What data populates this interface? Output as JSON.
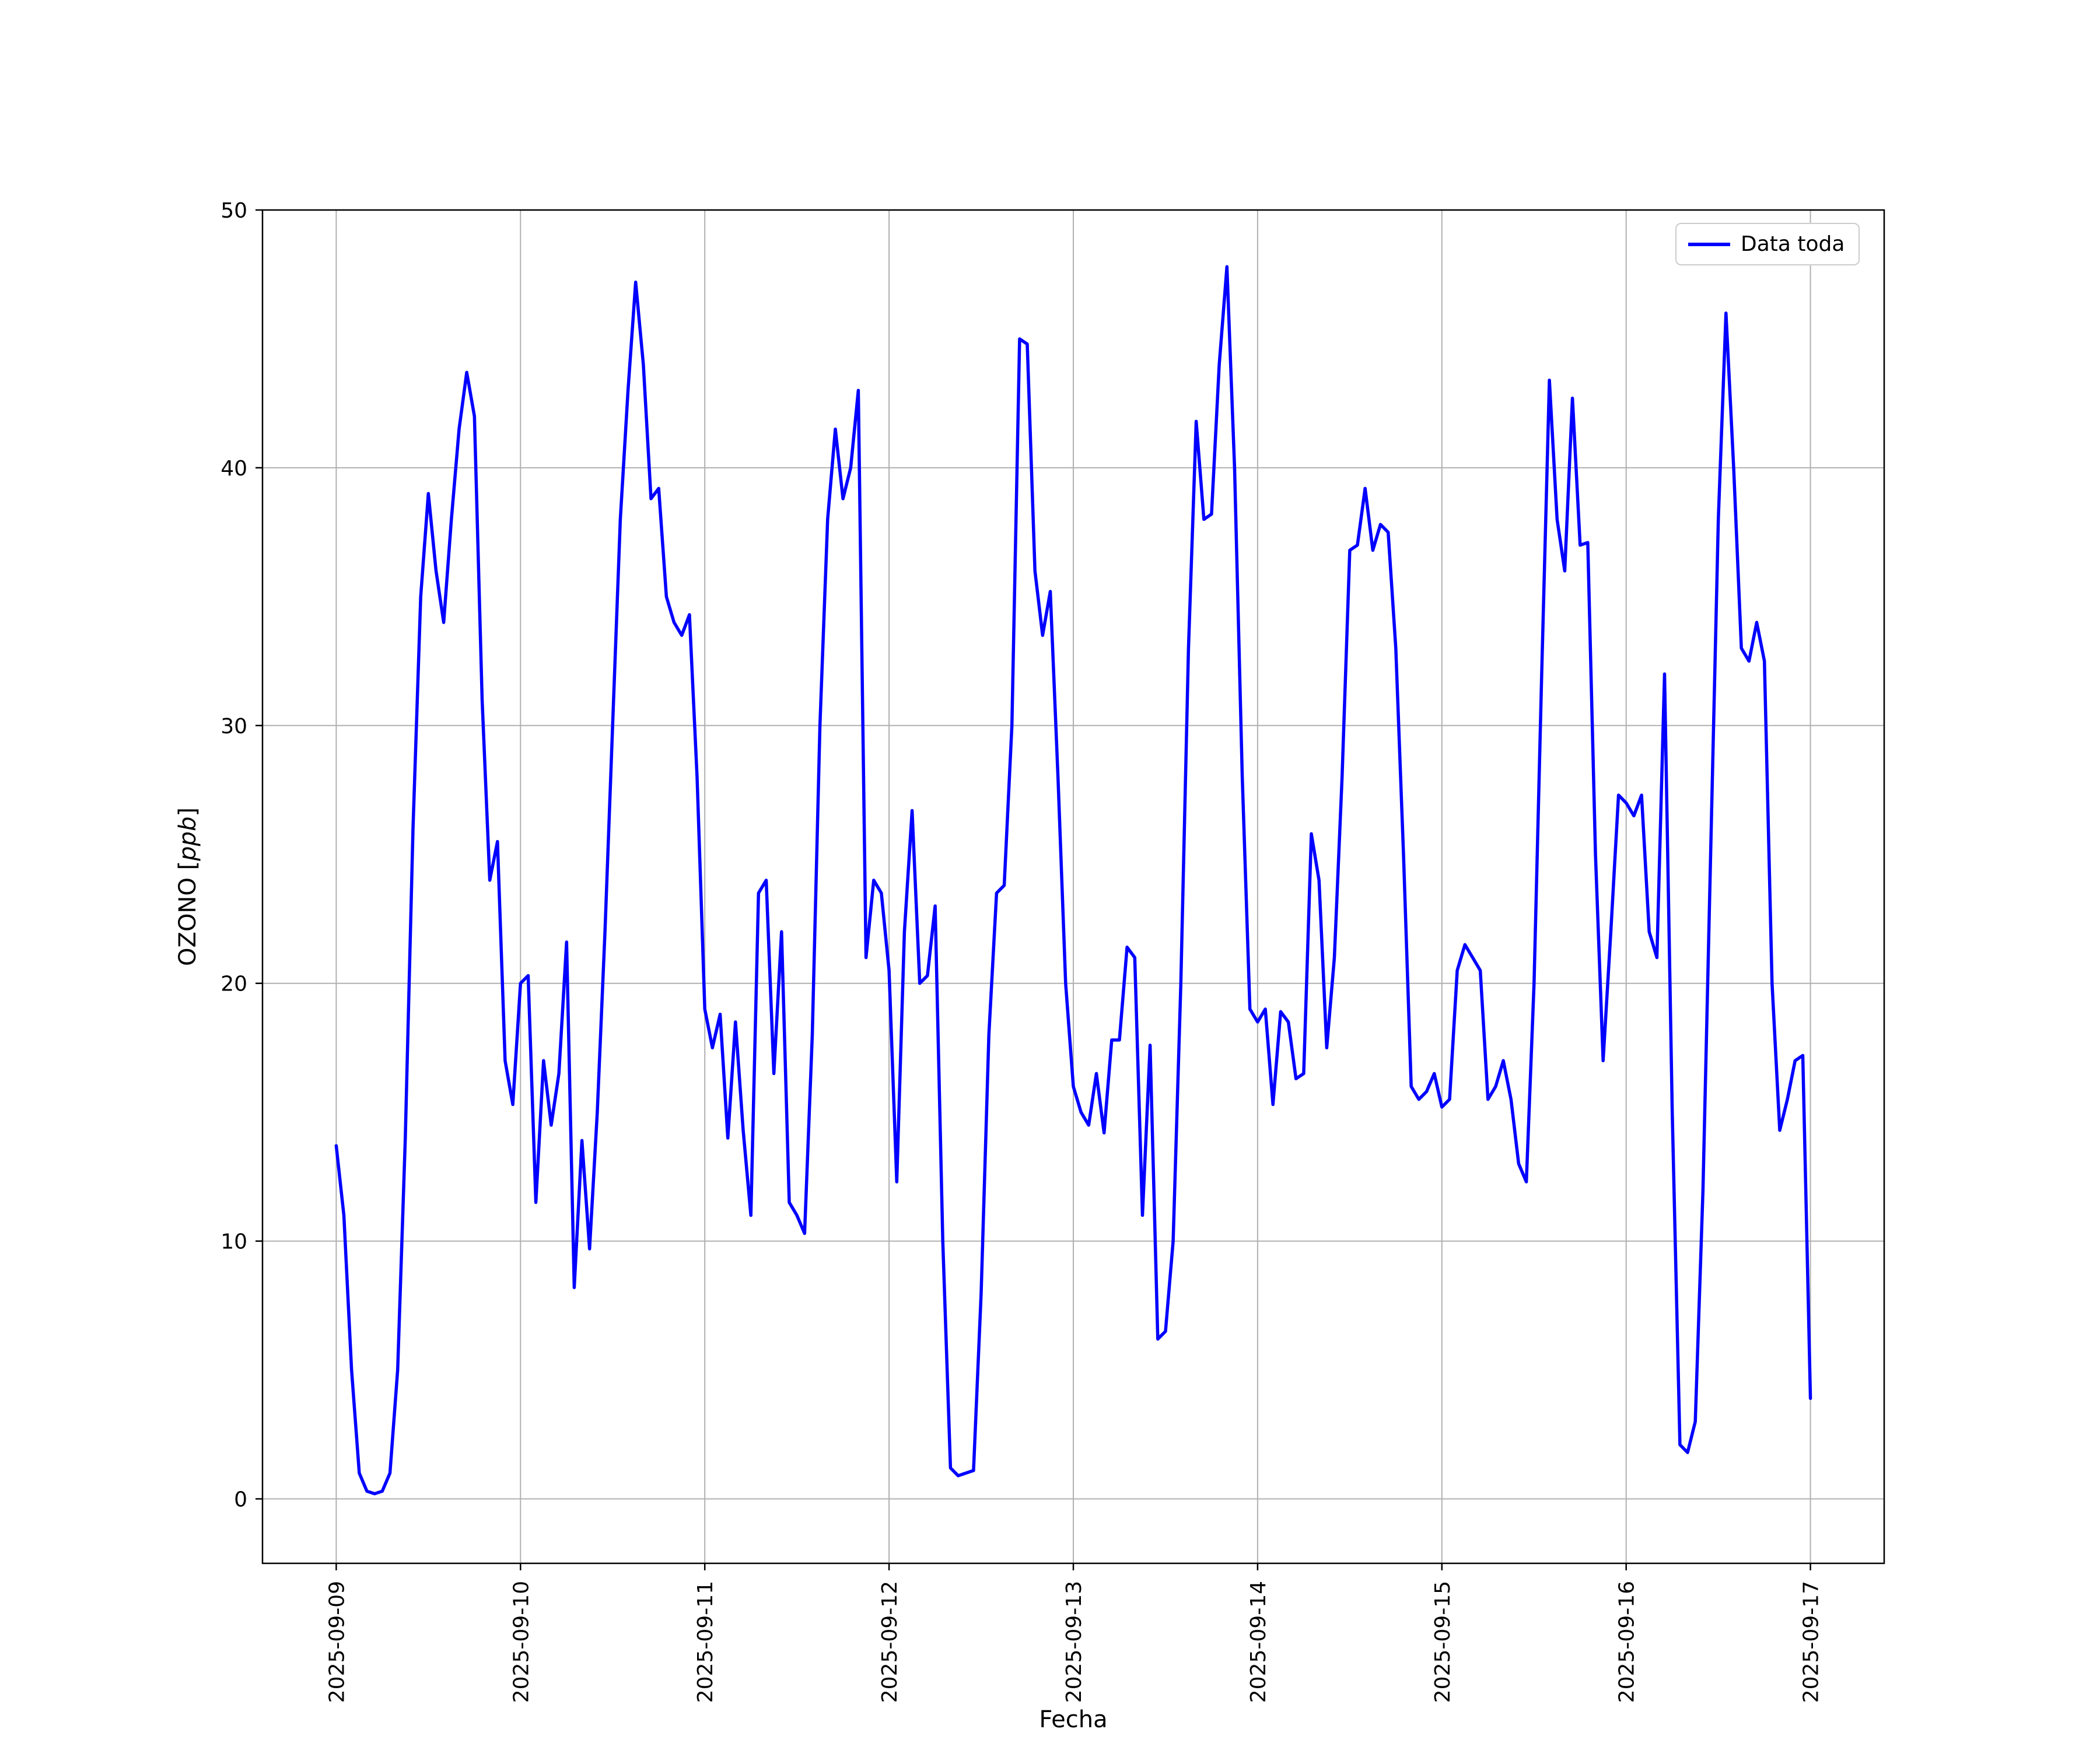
{
  "figure": {
    "background": "#ffffff"
  },
  "chart_data": {
    "type": "line",
    "title": "",
    "xlabel": "Fecha",
    "ylabel": "OZONO [ppb]",
    "ylabel_parts": {
      "prefix": "OZONO [",
      "italic": "ppb",
      "suffix": "]"
    },
    "grid": true,
    "legend_position": "upper right",
    "axis_color": "#000000",
    "grid_color": "#b0b0b0",
    "ylim": [
      -2.5,
      50
    ],
    "y_ticks": [
      0,
      10,
      20,
      30,
      40,
      50
    ],
    "xlim_hours": [
      -9.6,
      201.6
    ],
    "x_ticks": [
      {
        "hours": 0,
        "label": "2025-09-09"
      },
      {
        "hours": 24,
        "label": "2025-09-10"
      },
      {
        "hours": 48,
        "label": "2025-09-11"
      },
      {
        "hours": 72,
        "label": "2025-09-12"
      },
      {
        "hours": 96,
        "label": "2025-09-13"
      },
      {
        "hours": 120,
        "label": "2025-09-14"
      },
      {
        "hours": 144,
        "label": "2025-09-15"
      },
      {
        "hours": 168,
        "label": "2025-09-16"
      },
      {
        "hours": 192,
        "label": "2025-09-17"
      }
    ],
    "x_start_hour": 0,
    "x_step_hours": 1,
    "series": [
      {
        "name": "Data toda",
        "color": "#0000ff",
        "values": [
          13.7,
          11.0,
          5.0,
          1.0,
          0.3,
          0.2,
          0.3,
          1.0,
          5.0,
          14.0,
          26.0,
          35.0,
          39.0,
          36.0,
          34.0,
          38.0,
          41.5,
          43.7,
          42.0,
          31.0,
          24.0,
          25.5,
          17.0,
          15.3,
          20.0,
          20.3,
          11.5,
          17.0,
          14.5,
          16.5,
          21.6,
          8.2,
          13.9,
          9.7,
          15.0,
          22.0,
          30.0,
          38.0,
          43.0,
          47.2,
          44.0,
          38.8,
          39.2,
          35.0,
          34.0,
          33.5,
          34.3,
          28.0,
          19.0,
          17.5,
          18.8,
          14.0,
          18.5,
          14.3,
          11.0,
          23.5,
          24.0,
          16.5,
          22.0,
          11.5,
          11.0,
          10.3,
          18.0,
          30.0,
          38.0,
          41.5,
          38.8,
          40.0,
          43.0,
          21.0,
          24.0,
          23.5,
          20.5,
          12.3,
          22.0,
          26.7,
          20.0,
          20.3,
          23.0,
          10.0,
          1.2,
          0.9,
          1.0,
          1.1,
          8.0,
          18.0,
          23.5,
          23.8,
          30.0,
          45.0,
          44.8,
          36.0,
          33.5,
          35.2,
          28.0,
          20.0,
          16.0,
          15.0,
          14.5,
          16.5,
          14.2,
          17.8,
          17.8,
          21.4,
          21.0,
          11.0,
          17.6,
          6.2,
          6.5,
          10.0,
          20.0,
          33.0,
          41.8,
          38.0,
          38.2,
          44.0,
          47.8,
          40.0,
          28.0,
          19.0,
          18.5,
          19.0,
          15.3,
          18.9,
          18.5,
          16.3,
          16.5,
          25.8,
          24.0,
          17.5,
          21.0,
          28.0,
          36.8,
          37.0,
          39.2,
          36.8,
          37.8,
          37.5,
          33.0,
          25.0,
          16.0,
          15.5,
          15.8,
          16.5,
          15.2,
          15.5,
          20.5,
          21.5,
          21.0,
          20.5,
          15.5,
          16.0,
          17.0,
          15.5,
          13.0,
          12.3,
          20.0,
          32.0,
          43.4,
          38.0,
          36.0,
          42.7,
          37.0,
          37.1,
          25.0,
          17.0,
          22.0,
          27.3,
          27.0,
          26.5,
          27.3,
          22.0,
          21.0,
          32.0,
          15.0,
          2.1,
          1.8,
          3.0,
          12.0,
          25.0,
          38.0,
          46.0,
          40.0,
          33.0,
          32.5,
          34.0,
          32.5,
          20.0,
          14.3,
          15.5,
          17.0,
          17.2,
          3.9
        ]
      }
    ]
  }
}
